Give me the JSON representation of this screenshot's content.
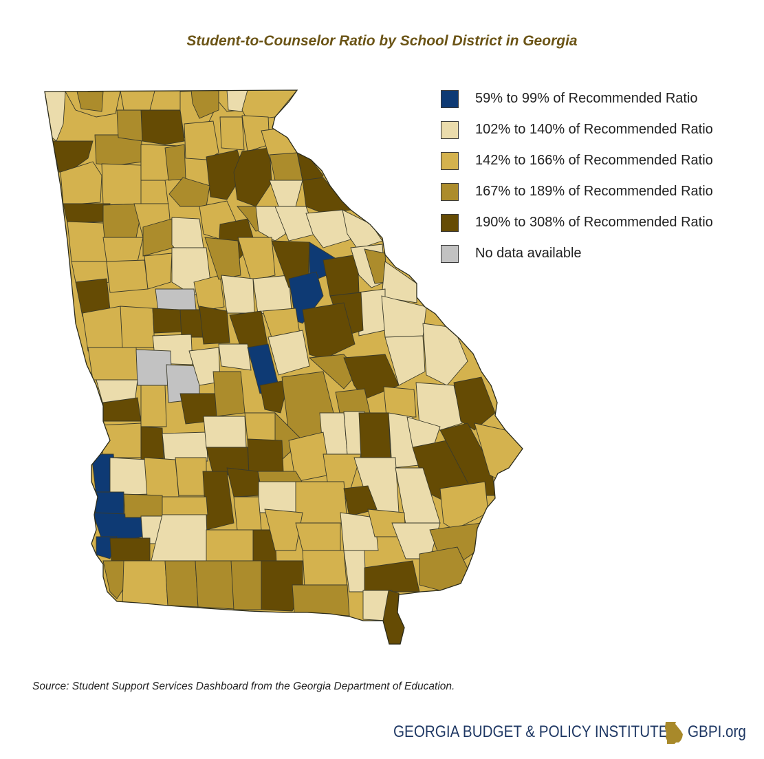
{
  "title": "Student-to-Counselor Ratio by School District in Georgia",
  "legend": [
    {
      "label": "59% to 99% of Recommended Ratio",
      "color": "#0e3a74"
    },
    {
      "label": "102% to 140% of Recommended Ratio",
      "color": "#ebdcac"
    },
    {
      "label": "142% to 166% of Recommended Ratio",
      "color": "#d4b24e"
    },
    {
      "label": "167% to 189% of Recommended Ratio",
      "color": "#ac8c2c"
    },
    {
      "label": "190% to 308% of Recommended Ratio",
      "color": "#654b04"
    },
    {
      "label": "No data available",
      "color": "#c2c2c2"
    }
  ],
  "source": "Source: Student Support Services Dashboard from the Georgia Department of Education.",
  "footer": {
    "organization": "GEORGIA BUDGET & POLICY INSTITUTE",
    "website": "GBPI.org",
    "logo_icon": "georgia-state-icon",
    "logo_color": "#a8892a"
  }
}
